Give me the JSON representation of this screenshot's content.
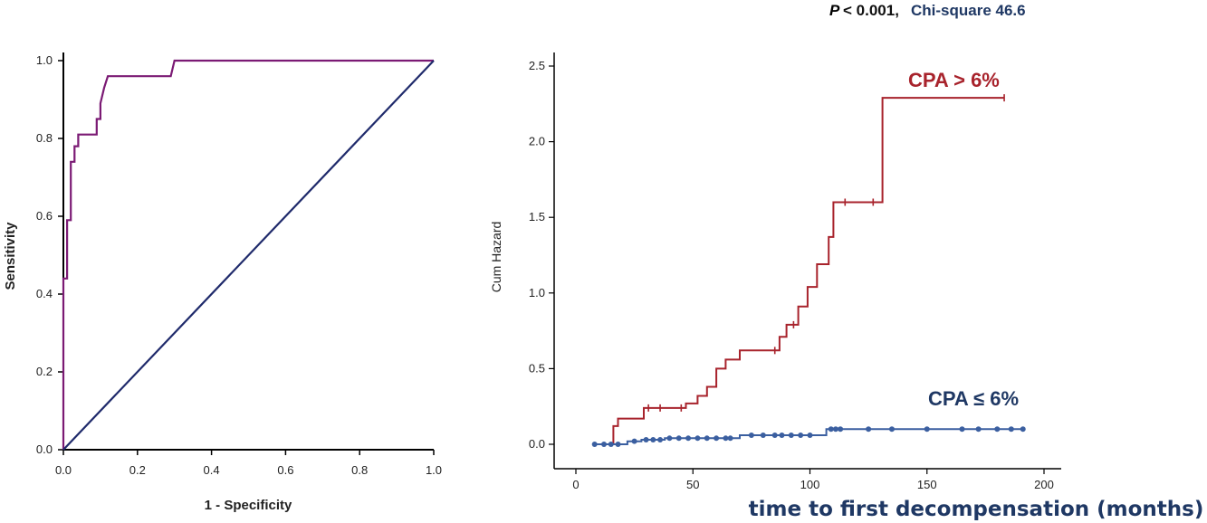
{
  "annotation": {
    "p_symbol": "P",
    "p_value": "< 0.001,",
    "chi_square": "Chi-square 46.6",
    "color_p": "#111111",
    "color_chi": "#1f3864"
  },
  "chart_data": [
    {
      "type": "line",
      "xlabel": "1 - Specificity",
      "ylabel": "Sensitivity",
      "xlim": [
        0,
        1
      ],
      "ylim": [
        0,
        1
      ],
      "xticks": [
        "0.0",
        "0.2",
        "0.4",
        "0.6",
        "0.8",
        "1.0"
      ],
      "yticks": [
        "0.0",
        "0.2",
        "0.4",
        "0.6",
        "0.8",
        "1.0"
      ],
      "grid": false,
      "series": [
        {
          "color": "#7b1a74",
          "x": [
            0,
            0,
            0.01,
            0.01,
            0.01,
            0.02,
            0.02,
            0.03,
            0.03,
            0.04,
            0.04,
            0.05,
            0.05,
            0.09,
            0.09,
            0.1,
            0.1,
            0.1,
            0.11,
            0.12,
            0.29,
            0.3,
            0.31,
            1.0
          ],
          "y": [
            0,
            0.44,
            0.44,
            0.59,
            0.59,
            0.59,
            0.74,
            0.74,
            0.78,
            0.78,
            0.81,
            0.81,
            0.81,
            0.81,
            0.85,
            0.85,
            0.89,
            0.89,
            0.93,
            0.96,
            0.96,
            1.0,
            1.0,
            1.0
          ]
        },
        {
          "color": "#1f2a6b",
          "x": [
            0,
            1
          ],
          "y": [
            0,
            1
          ]
        }
      ]
    },
    {
      "type": "line",
      "xlabel": "time to first decompensation (months)",
      "ylabel": "Cum Hazard",
      "xlim": [
        0,
        200
      ],
      "ylim": [
        0,
        2.5
      ],
      "xticks": [
        "0",
        "50",
        "100",
        "150",
        "200"
      ],
      "yticks": [
        "0.0",
        "0.5",
        "1.0",
        "1.5",
        "2.0",
        "2.5"
      ],
      "grid": false,
      "series": [
        {
          "name": "CPA > 6%",
          "color": "#a8232c",
          "step": [
            [
              10,
              0
            ],
            [
              16,
              0
            ],
            [
              16,
              0.12
            ],
            [
              18,
              0.12
            ],
            [
              18,
              0.17
            ],
            [
              29,
              0.17
            ],
            [
              29,
              0.24
            ],
            [
              47,
              0.24
            ],
            [
              47,
              0.27
            ],
            [
              52,
              0.27
            ],
            [
              52,
              0.32
            ],
            [
              56,
              0.32
            ],
            [
              56,
              0.38
            ],
            [
              60,
              0.38
            ],
            [
              60,
              0.5
            ],
            [
              64,
              0.5
            ],
            [
              64,
              0.56
            ],
            [
              70,
              0.56
            ],
            [
              70,
              0.62
            ],
            [
              87,
              0.62
            ],
            [
              87,
              0.71
            ],
            [
              90,
              0.71
            ],
            [
              90,
              0.79
            ],
            [
              95,
              0.79
            ],
            [
              95,
              0.91
            ],
            [
              99,
              0.91
            ],
            [
              99,
              1.04
            ],
            [
              103,
              1.04
            ],
            [
              103,
              1.19
            ],
            [
              108,
              1.19
            ],
            [
              108,
              1.37
            ],
            [
              110,
              1.37
            ],
            [
              110,
              1.6
            ],
            [
              131,
              1.6
            ],
            [
              131,
              2.29
            ],
            [
              183,
              2.29
            ]
          ],
          "censors": [
            [
              31,
              0.24
            ],
            [
              36,
              0.24
            ],
            [
              45,
              0.24
            ],
            [
              85,
              0.62
            ],
            [
              93,
              0.79
            ],
            [
              115,
              1.6
            ],
            [
              127,
              1.6
            ],
            [
              183,
              2.29
            ]
          ]
        },
        {
          "name": "CPA ≤ 6%",
          "color": "#3b5fa0",
          "step": [
            [
              8,
              0
            ],
            [
              22,
              0
            ],
            [
              22,
              0.02
            ],
            [
              28,
              0.02
            ],
            [
              28,
              0.03
            ],
            [
              38,
              0.03
            ],
            [
              38,
              0.04
            ],
            [
              70,
              0.04
            ],
            [
              70,
              0.06
            ],
            [
              107,
              0.06
            ],
            [
              107,
              0.1
            ],
            [
              191,
              0.1
            ]
          ],
          "censors": [
            [
              8,
              0
            ],
            [
              12,
              0
            ],
            [
              15,
              0
            ],
            [
              18,
              0
            ],
            [
              25,
              0.02
            ],
            [
              30,
              0.03
            ],
            [
              33,
              0.03
            ],
            [
              36,
              0.03
            ],
            [
              40,
              0.04
            ],
            [
              44,
              0.04
            ],
            [
              48,
              0.04
            ],
            [
              52,
              0.04
            ],
            [
              56,
              0.04
            ],
            [
              60,
              0.04
            ],
            [
              64,
              0.04
            ],
            [
              66,
              0.04
            ],
            [
              75,
              0.06
            ],
            [
              80,
              0.06
            ],
            [
              85,
              0.06
            ],
            [
              88,
              0.06
            ],
            [
              92,
              0.06
            ],
            [
              96,
              0.06
            ],
            [
              100,
              0.06
            ],
            [
              109,
              0.1
            ],
            [
              111,
              0.1
            ],
            [
              113,
              0.1
            ],
            [
              125,
              0.1
            ],
            [
              135,
              0.1
            ],
            [
              150,
              0.1
            ],
            [
              165,
              0.1
            ],
            [
              172,
              0.1
            ],
            [
              180,
              0.1
            ],
            [
              186,
              0.1
            ],
            [
              191,
              0.1
            ]
          ]
        }
      ]
    }
  ]
}
